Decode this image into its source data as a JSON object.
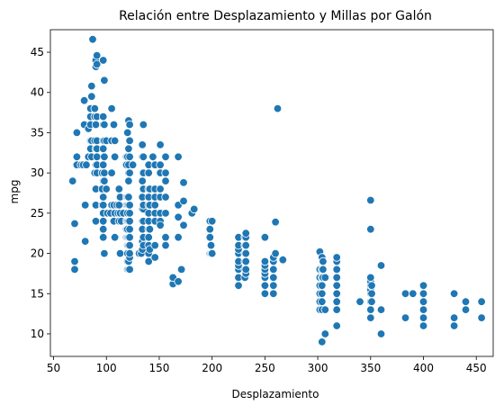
{
  "chart_data": {
    "type": "scatter",
    "title": "Relación entre Desplazamiento y Millas por Galón",
    "xlabel": "Desplazamiento",
    "ylabel": "mpg",
    "xlim": [
      47,
      466
    ],
    "ylim": [
      7.2,
      47.8
    ],
    "xticks": [
      50,
      100,
      150,
      200,
      250,
      300,
      350,
      400,
      450
    ],
    "yticks": [
      10,
      15,
      20,
      25,
      30,
      35,
      40,
      45
    ],
    "grid": false,
    "marker_color": "#1f77b4",
    "marker_edge_color": "#ffffff",
    "points": [
      [
        68,
        29
      ],
      [
        70,
        18
      ],
      [
        70,
        19
      ],
      [
        70,
        23.7
      ],
      [
        72,
        31
      ],
      [
        72,
        32
      ],
      [
        72,
        35
      ],
      [
        76,
        31
      ],
      [
        78,
        31
      ],
      [
        79,
        36
      ],
      [
        79,
        39
      ],
      [
        80,
        21.5
      ],
      [
        80,
        26
      ],
      [
        81,
        31
      ],
      [
        83,
        32
      ],
      [
        83,
        35.5
      ],
      [
        85,
        33
      ],
      [
        85,
        34
      ],
      [
        85,
        36
      ],
      [
        85,
        37
      ],
      [
        85,
        38
      ],
      [
        86,
        32
      ],
      [
        86,
        34
      ],
      [
        86,
        39.5
      ],
      [
        86,
        40.8
      ],
      [
        87,
        46.6
      ],
      [
        89,
        30
      ],
      [
        89,
        34
      ],
      [
        89,
        37
      ],
      [
        89,
        38
      ],
      [
        90,
        24
      ],
      [
        90,
        26
      ],
      [
        90,
        28
      ],
      [
        90,
        31
      ],
      [
        90,
        33
      ],
      [
        90,
        36
      ],
      [
        90,
        43.2
      ],
      [
        90,
        44
      ],
      [
        91,
        30
      ],
      [
        91,
        31
      ],
      [
        91,
        32
      ],
      [
        91,
        33
      ],
      [
        91,
        34
      ],
      [
        91,
        37
      ],
      [
        91,
        43.5
      ],
      [
        91,
        44.6
      ],
      [
        96,
        26
      ],
      [
        96,
        28
      ],
      [
        96,
        30
      ],
      [
        97,
        22
      ],
      [
        97,
        23
      ],
      [
        97,
        24
      ],
      [
        97,
        25
      ],
      [
        97,
        26
      ],
      [
        97,
        27
      ],
      [
        97,
        29
      ],
      [
        97,
        31
      ],
      [
        97,
        33
      ],
      [
        97,
        34
      ],
      [
        97,
        36
      ],
      [
        97,
        37
      ],
      [
        97,
        44
      ],
      [
        98,
        20
      ],
      [
        98,
        29
      ],
      [
        98,
        30
      ],
      [
        98,
        32
      ],
      [
        98,
        34
      ],
      [
        98,
        36
      ],
      [
        98,
        41.5
      ],
      [
        100,
        28
      ],
      [
        100,
        34
      ],
      [
        101,
        25
      ],
      [
        104,
        25
      ],
      [
        105,
        26
      ],
      [
        105,
        30
      ],
      [
        105,
        34
      ],
      [
        105,
        38
      ],
      [
        107,
        24
      ],
      [
        107,
        26
      ],
      [
        107,
        36
      ],
      [
        108,
        22
      ],
      [
        108,
        25
      ],
      [
        108,
        32
      ],
      [
        108,
        34
      ],
      [
        110,
        26
      ],
      [
        111,
        25
      ],
      [
        112,
        24
      ],
      [
        112,
        26
      ],
      [
        112,
        28
      ],
      [
        113,
        20
      ],
      [
        113,
        25
      ],
      [
        113,
        27
      ],
      [
        114,
        24
      ],
      [
        116,
        25
      ],
      [
        119,
        22
      ],
      [
        119,
        23
      ],
      [
        119,
        24
      ],
      [
        119,
        26
      ],
      [
        119,
        27
      ],
      [
        119,
        31
      ],
      [
        119,
        32
      ],
      [
        120,
        18
      ],
      [
        120,
        19
      ],
      [
        120,
        20
      ],
      [
        120,
        21
      ],
      [
        120,
        22
      ],
      [
        120,
        23
      ],
      [
        120,
        24
      ],
      [
        120,
        25
      ],
      [
        120,
        26
      ],
      [
        120,
        27
      ],
      [
        120,
        32
      ],
      [
        120,
        35
      ],
      [
        121,
        18
      ],
      [
        121,
        19
      ],
      [
        121,
        21
      ],
      [
        121,
        22
      ],
      [
        121,
        24
      ],
      [
        121,
        26
      ],
      [
        121,
        27
      ],
      [
        121,
        29
      ],
      [
        121,
        30
      ],
      [
        121,
        31
      ],
      [
        121,
        33
      ],
      [
        121,
        36.5
      ],
      [
        122,
        18
      ],
      [
        122,
        19.5
      ],
      [
        122,
        20
      ],
      [
        122,
        21
      ],
      [
        122,
        22
      ],
      [
        122,
        23
      ],
      [
        122,
        24
      ],
      [
        122,
        25
      ],
      [
        122,
        26
      ],
      [
        122,
        30
      ],
      [
        122,
        32
      ],
      [
        122,
        34
      ],
      [
        122,
        36
      ],
      [
        125,
        31
      ],
      [
        131,
        20
      ],
      [
        133,
        20
      ],
      [
        134,
        20.5
      ],
      [
        134,
        21.5
      ],
      [
        134,
        23
      ],
      [
        134,
        24
      ],
      [
        134,
        25.5
      ],
      [
        134,
        27
      ],
      [
        134,
        29
      ],
      [
        134,
        32
      ],
      [
        134,
        33.5
      ],
      [
        135,
        21
      ],
      [
        135,
        22
      ],
      [
        135,
        24
      ],
      [
        135,
        25.5
      ],
      [
        135,
        26
      ],
      [
        135,
        28
      ],
      [
        135,
        30
      ],
      [
        135,
        32
      ],
      [
        135,
        36
      ],
      [
        140,
        19
      ],
      [
        140,
        20
      ],
      [
        140,
        21
      ],
      [
        140,
        22
      ],
      [
        140,
        23
      ],
      [
        140,
        24
      ],
      [
        140,
        25
      ],
      [
        140,
        26
      ],
      [
        140,
        27
      ],
      [
        140,
        28
      ],
      [
        140,
        30
      ],
      [
        140,
        31
      ],
      [
        141,
        20.5
      ],
      [
        141,
        23
      ],
      [
        141,
        26
      ],
      [
        141,
        28
      ],
      [
        144,
        32
      ],
      [
        146,
        19.5
      ],
      [
        146,
        21
      ],
      [
        146,
        24
      ],
      [
        146,
        25
      ],
      [
        146,
        26
      ],
      [
        146,
        27
      ],
      [
        146,
        28
      ],
      [
        146,
        31
      ],
      [
        151,
        24
      ],
      [
        151,
        25
      ],
      [
        151,
        27
      ],
      [
        151,
        33.5
      ],
      [
        151,
        23.5
      ],
      [
        151,
        28
      ],
      [
        151,
        30
      ],
      [
        151,
        31
      ],
      [
        156,
        21
      ],
      [
        156,
        22
      ],
      [
        156,
        25
      ],
      [
        156,
        27
      ],
      [
        156,
        29
      ],
      [
        156,
        30
      ],
      [
        156,
        32
      ],
      [
        163,
        16.2
      ],
      [
        163,
        17
      ],
      [
        168,
        16.5
      ],
      [
        168,
        22
      ],
      [
        168,
        24.5
      ],
      [
        168,
        26
      ],
      [
        168,
        32
      ],
      [
        171,
        18
      ],
      [
        173,
        23.5
      ],
      [
        173,
        26.5
      ],
      [
        173,
        28.8
      ],
      [
        181,
        25
      ],
      [
        183,
        25.5
      ],
      [
        198,
        20
      ],
      [
        198,
        22
      ],
      [
        198,
        23
      ],
      [
        198,
        24
      ],
      [
        199,
        20
      ],
      [
        199,
        21
      ],
      [
        200,
        20
      ],
      [
        200,
        24
      ],
      [
        225,
        16
      ],
      [
        225,
        17
      ],
      [
        225,
        18
      ],
      [
        225,
        18.5
      ],
      [
        225,
        19
      ],
      [
        225,
        20
      ],
      [
        225,
        20.5
      ],
      [
        225,
        21
      ],
      [
        225,
        22
      ],
      [
        231,
        17
      ],
      [
        231,
        18
      ],
      [
        231,
        19
      ],
      [
        231,
        20
      ],
      [
        231,
        21
      ],
      [
        231,
        22
      ],
      [
        232,
        17.5
      ],
      [
        232,
        18
      ],
      [
        232,
        19
      ],
      [
        232,
        20
      ],
      [
        232,
        21
      ],
      [
        232,
        22
      ],
      [
        232,
        22.5
      ],
      [
        250,
        15
      ],
      [
        250,
        16
      ],
      [
        250,
        17
      ],
      [
        250,
        17.5
      ],
      [
        250,
        18
      ],
      [
        250,
        18.5
      ],
      [
        250,
        19
      ],
      [
        250,
        22
      ],
      [
        258,
        15
      ],
      [
        258,
        16
      ],
      [
        258,
        17
      ],
      [
        258,
        18
      ],
      [
        258,
        19
      ],
      [
        258,
        19.5
      ],
      [
        260,
        20
      ],
      [
        260,
        23.9
      ],
      [
        262,
        38
      ],
      [
        267,
        19.2
      ],
      [
        302,
        13
      ],
      [
        302,
        14
      ],
      [
        302,
        15
      ],
      [
        302,
        16
      ],
      [
        302,
        17
      ],
      [
        302,
        18
      ],
      [
        302,
        20.2
      ],
      [
        304,
        9
      ],
      [
        304,
        13
      ],
      [
        304,
        14
      ],
      [
        304,
        15
      ],
      [
        304,
        16
      ],
      [
        304,
        17
      ],
      [
        304,
        18
      ],
      [
        304,
        19.5
      ],
      [
        305,
        17
      ],
      [
        305,
        18
      ],
      [
        305,
        19
      ],
      [
        307,
        10
      ],
      [
        307,
        13
      ],
      [
        307,
        17
      ],
      [
        318,
        11
      ],
      [
        318,
        13
      ],
      [
        318,
        14
      ],
      [
        318,
        15
      ],
      [
        318,
        16
      ],
      [
        318,
        17
      ],
      [
        318,
        18
      ],
      [
        318,
        19
      ],
      [
        318,
        19.5
      ],
      [
        340,
        14
      ],
      [
        350,
        12
      ],
      [
        350,
        13
      ],
      [
        350,
        14
      ],
      [
        350,
        15
      ],
      [
        350,
        15.5
      ],
      [
        350,
        16
      ],
      [
        350,
        16.5
      ],
      [
        350,
        17
      ],
      [
        350,
        23
      ],
      [
        350,
        26.6
      ],
      [
        351,
        14
      ],
      [
        351,
        15
      ],
      [
        351,
        16
      ],
      [
        360,
        10
      ],
      [
        360,
        13
      ],
      [
        360,
        18.5
      ],
      [
        383,
        12
      ],
      [
        383,
        15
      ],
      [
        390,
        15
      ],
      [
        400,
        11
      ],
      [
        400,
        12
      ],
      [
        400,
        13
      ],
      [
        400,
        14
      ],
      [
        400,
        15
      ],
      [
        400,
        16
      ],
      [
        429,
        11
      ],
      [
        429,
        12
      ],
      [
        429,
        15
      ],
      [
        440,
        13
      ],
      [
        440,
        14
      ],
      [
        455,
        12
      ],
      [
        455,
        14
      ]
    ]
  }
}
